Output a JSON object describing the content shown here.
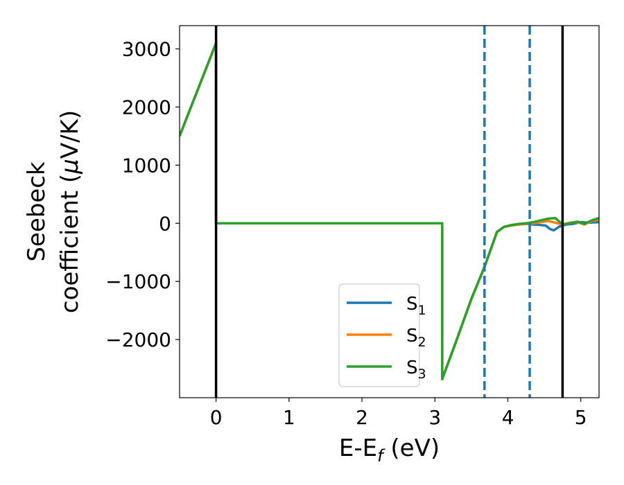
{
  "chart_data": {
    "type": "line",
    "title": "",
    "xlabel": {
      "base": "E-E",
      "sub": "f",
      "rest": " (eV)"
    },
    "ylabel": {
      "line1": "Seebeck",
      "line2_pre": "coefficient  (",
      "line2_mu": "μ",
      "line2_post": "V/K)"
    },
    "xlim": [
      -0.5,
      5.25
    ],
    "ylim": [
      -3000,
      3400
    ],
    "xticks": [
      0,
      1,
      2,
      3,
      4,
      5
    ],
    "xtick_labels": [
      "0",
      "1",
      "2",
      "3",
      "4",
      "5"
    ],
    "yticks": [
      -2000,
      -1000,
      0,
      1000,
      2000,
      3000
    ],
    "ytick_labels": [
      "−2000",
      "−1000",
      "0",
      "1000",
      "2000",
      "3000"
    ],
    "grid": false,
    "legend_position": "lower-right",
    "vlines_solid": [
      0,
      4.75
    ],
    "vlines_dashed": [
      3.68,
      4.3
    ],
    "series": [
      {
        "name": "S",
        "sub": "1",
        "color": "#1f77b4",
        "x": [
          -0.5,
          0.0,
          0.0,
          3.1,
          3.1,
          3.3,
          3.5,
          3.68,
          3.85,
          3.95,
          4.05,
          4.15,
          4.25,
          4.35,
          4.45,
          4.52,
          4.58,
          4.63,
          4.7,
          4.8,
          4.9,
          5.0,
          5.1,
          5.25
        ],
        "y": [
          1500,
          3100,
          0,
          0,
          -2680,
          -2000,
          -1300,
          -750,
          -150,
          -60,
          -30,
          -20,
          -10,
          -20,
          -30,
          -40,
          -100,
          -120,
          -60,
          -20,
          -10,
          20,
          10,
          20
        ]
      },
      {
        "name": "S",
        "sub": "2",
        "color": "#ff7f0e",
        "x": [
          -0.5,
          0.0,
          0.0,
          3.1,
          3.1,
          3.3,
          3.5,
          3.68,
          3.85,
          3.95,
          4.05,
          4.15,
          4.25,
          4.35,
          4.45,
          4.55,
          4.65,
          4.75,
          4.85,
          4.95,
          5.05,
          5.15,
          5.25
        ],
        "y": [
          1500,
          3100,
          0,
          0,
          -2680,
          -2000,
          -1300,
          -750,
          -150,
          -60,
          -40,
          -20,
          -10,
          0,
          20,
          40,
          10,
          -20,
          10,
          20,
          -20,
          40,
          60
        ]
      },
      {
        "name": "S",
        "sub": "3",
        "color": "#2ca02c",
        "x": [
          -0.5,
          0.0,
          0.0,
          3.1,
          3.1,
          3.3,
          3.5,
          3.68,
          3.85,
          3.95,
          4.05,
          4.15,
          4.25,
          4.35,
          4.45,
          4.55,
          4.65,
          4.75,
          4.85,
          4.95,
          5.05,
          5.15,
          5.25
        ],
        "y": [
          1500,
          3100,
          0,
          0,
          -2680,
          -2000,
          -1300,
          -750,
          -150,
          -60,
          -30,
          -10,
          0,
          20,
          50,
          80,
          90,
          -20,
          0,
          30,
          -10,
          50,
          90
        ]
      }
    ]
  }
}
